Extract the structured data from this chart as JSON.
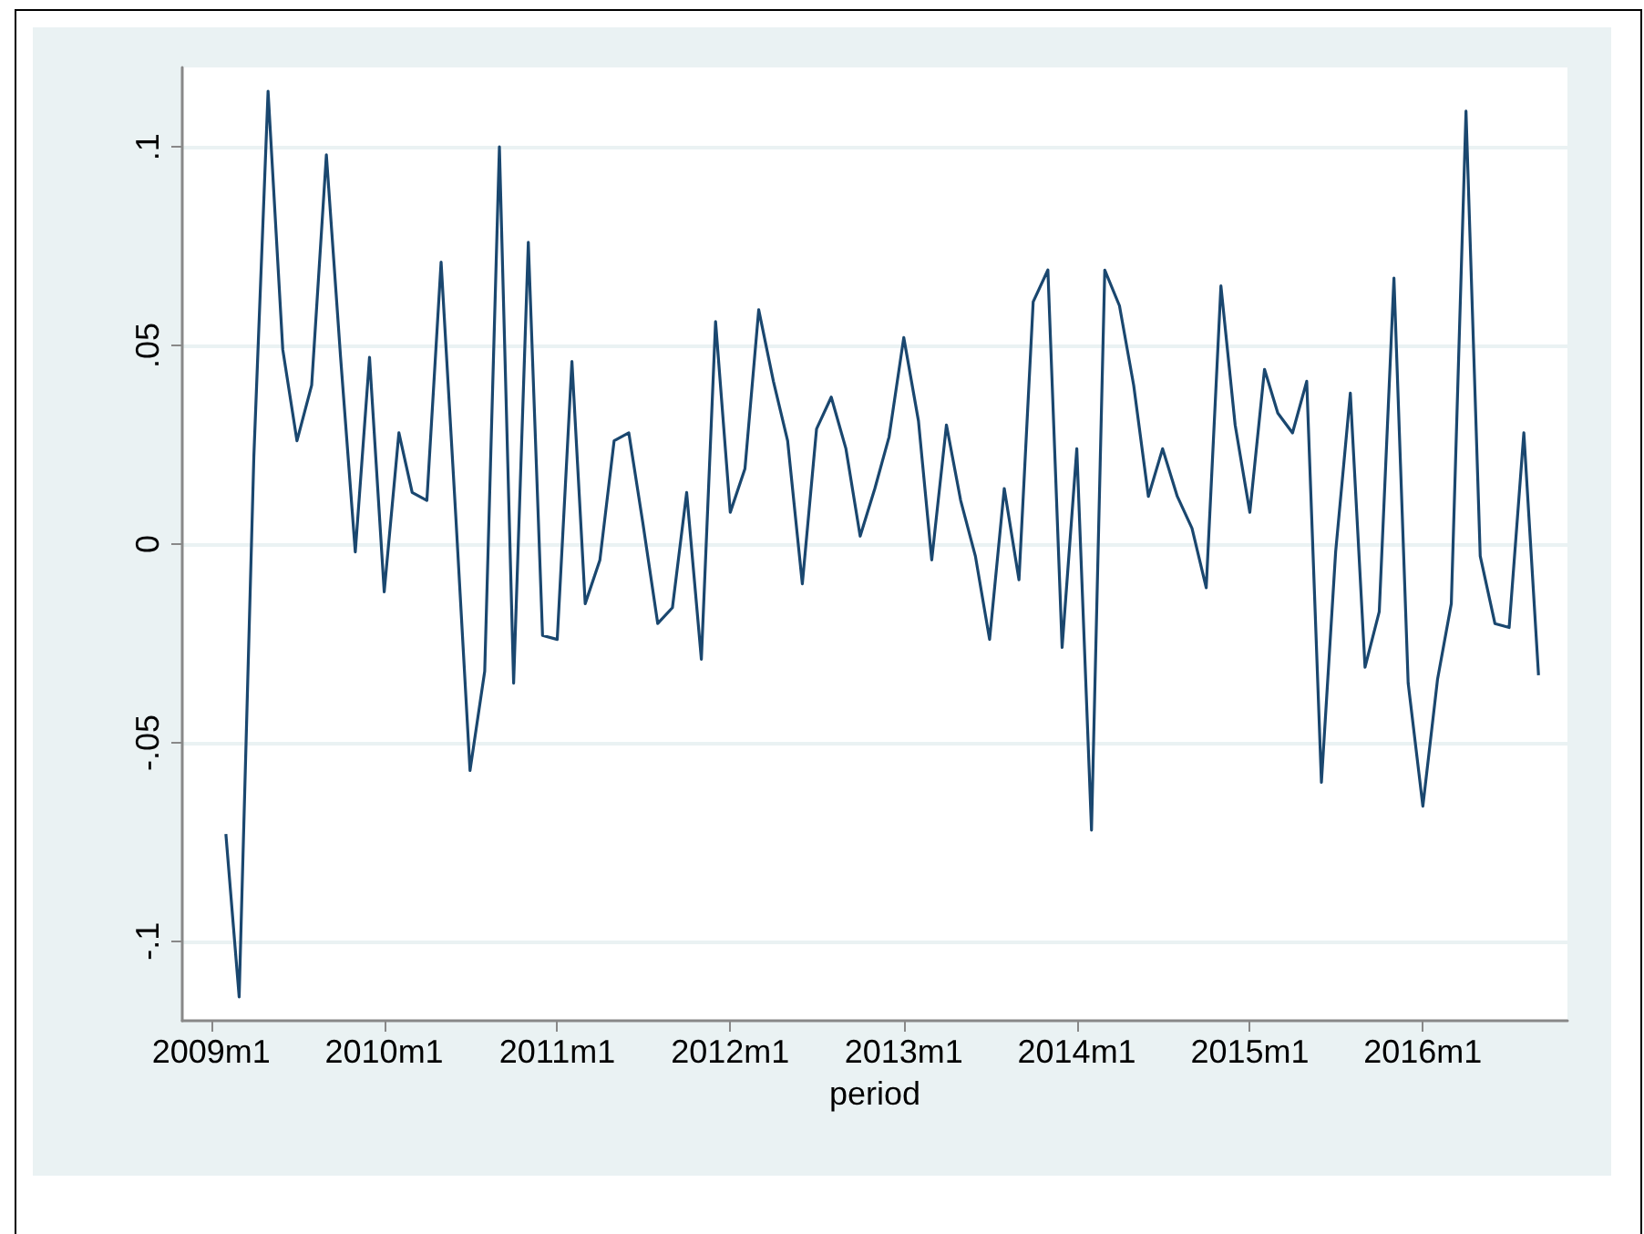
{
  "chart_data": {
    "type": "line",
    "xlabel": "period",
    "x": [
      "2009-02",
      "2009-03",
      "2009-04",
      "2009-05",
      "2009-06",
      "2009-07",
      "2009-08",
      "2009-09",
      "2009-10",
      "2009-11",
      "2009-12",
      "2010-01",
      "2010-02",
      "2010-03",
      "2010-04",
      "2010-05",
      "2010-06",
      "2010-07",
      "2010-08",
      "2010-09",
      "2010-10",
      "2010-11",
      "2010-12",
      "2011-01",
      "2011-02",
      "2011-03",
      "2011-04",
      "2011-05",
      "2011-06",
      "2011-07",
      "2011-08",
      "2011-09",
      "2011-10",
      "2011-11",
      "2011-12",
      "2012-01",
      "2012-02",
      "2012-03",
      "2012-04",
      "2012-05",
      "2012-06",
      "2012-07",
      "2012-08",
      "2012-09",
      "2012-10",
      "2012-11",
      "2012-12",
      "2013-01",
      "2013-02",
      "2013-03",
      "2013-04",
      "2013-05",
      "2013-06",
      "2013-07",
      "2013-08",
      "2013-09",
      "2013-10",
      "2013-11",
      "2013-12",
      "2014-01",
      "2014-02",
      "2014-03",
      "2014-04",
      "2014-05",
      "2014-06",
      "2014-07",
      "2014-08",
      "2014-09",
      "2014-10",
      "2014-11",
      "2014-12",
      "2015-01",
      "2015-02",
      "2015-03",
      "2015-04",
      "2015-05",
      "2015-06",
      "2015-07",
      "2015-08",
      "2015-09",
      "2015-10",
      "2015-11",
      "2015-12",
      "2016-01",
      "2016-02",
      "2016-03",
      "2016-04",
      "2016-05",
      "2016-06",
      "2016-07",
      "2016-08",
      "2016-09"
    ],
    "series": [
      {
        "color": "#1a476f",
        "values": [
          -0.073,
          -0.114,
          0.022,
          0.114,
          0.049,
          0.026,
          0.04,
          0.098,
          0.047,
          -0.002,
          0.047,
          -0.012,
          0.028,
          0.013,
          0.011,
          0.071,
          0.007,
          -0.057,
          -0.032,
          0.1,
          -0.035,
          0.076,
          -0.023,
          -0.024,
          0.046,
          -0.015,
          -0.004,
          0.026,
          0.028,
          0.005,
          -0.02,
          -0.016,
          0.013,
          -0.029,
          0.056,
          0.008,
          0.019,
          0.059,
          0.041,
          0.026,
          -0.01,
          0.029,
          0.037,
          0.024,
          0.002,
          0.014,
          0.027,
          0.052,
          0.031,
          -0.004,
          0.03,
          0.011,
          -0.003,
          -0.024,
          0.014,
          -0.009,
          0.061,
          0.069,
          -0.026,
          0.024,
          -0.072,
          0.069,
          0.06,
          0.04,
          0.012,
          0.024,
          0.012,
          0.004,
          -0.011,
          0.065,
          0.03,
          0.008,
          0.044,
          0.033,
          0.028,
          0.041,
          -0.06,
          -0.002,
          0.038,
          -0.031,
          -0.017,
          0.067,
          -0.035,
          -0.066,
          -0.034,
          -0.015,
          0.109,
          -0.003,
          -0.02,
          -0.021,
          0.028,
          -0.033
        ]
      }
    ],
    "xlim": [
      "2008-11",
      "2016-11"
    ],
    "xticks": [
      {
        "value": "2009-01",
        "label": "2009m1"
      },
      {
        "value": "2010-01",
        "label": "2010m1"
      },
      {
        "value": "2011-01",
        "label": "2011m1"
      },
      {
        "value": "2012-01",
        "label": "2012m1"
      },
      {
        "value": "2013-01",
        "label": "2013m1"
      },
      {
        "value": "2014-01",
        "label": "2014m1"
      },
      {
        "value": "2015-01",
        "label": "2015m1"
      },
      {
        "value": "2016-01",
        "label": "2016m1"
      }
    ],
    "ylim": [
      -0.12,
      0.12
    ],
    "yticks": [
      {
        "value": -0.1,
        "label": "-.1"
      },
      {
        "value": -0.05,
        "label": "-.05"
      },
      {
        "value": 0,
        "label": "0"
      },
      {
        "value": 0.05,
        "label": ".05"
      },
      {
        "value": 0.1,
        "label": ".1"
      }
    ],
    "grid": "y"
  }
}
